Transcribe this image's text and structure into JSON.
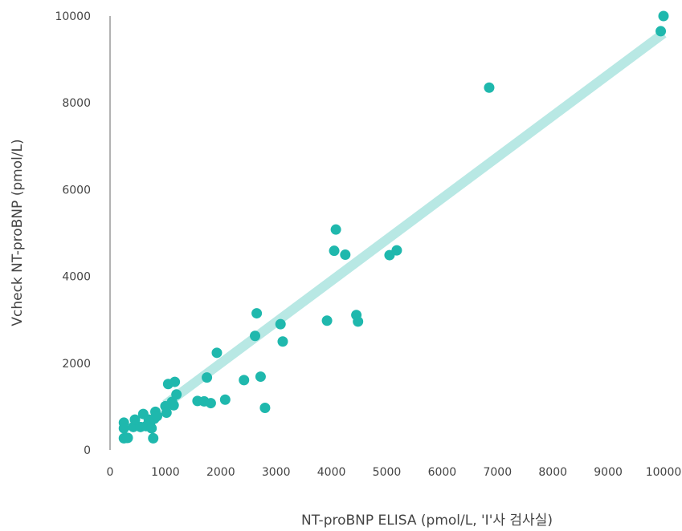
{
  "chart_data": {
    "type": "scatter",
    "title": "",
    "xlabel": "NT-proBNP ELISA (pmol/L, 'I'사 검사실)",
    "ylabel": "Vcheck NT-proBNP (pmol/L)",
    "xlim": [
      0,
      10000
    ],
    "ylim": [
      0,
      10000
    ],
    "x_ticks": [
      "0",
      "1000",
      "2000",
      "3000",
      "4000",
      "5000",
      "6000",
      "7000",
      "8000",
      "9000",
      "10000"
    ],
    "y_ticks": [
      "0",
      "2000",
      "4000",
      "6000",
      "8000",
      "10000"
    ],
    "grid": false,
    "legend": "none",
    "colors": {
      "points": "#1fb8ad",
      "trendline": "#b8e8e4",
      "axis": "#666666",
      "text": "#444444"
    },
    "trendline": {
      "x": [
        1000,
        10000
      ],
      "y": [
        1050,
        9600
      ]
    },
    "points": [
      [
        250,
        630
      ],
      [
        250,
        500
      ],
      [
        250,
        270
      ],
      [
        300,
        280
      ],
      [
        320,
        280
      ],
      [
        420,
        530
      ],
      [
        450,
        700
      ],
      [
        550,
        530
      ],
      [
        600,
        830
      ],
      [
        650,
        550
      ],
      [
        700,
        700
      ],
      [
        720,
        600
      ],
      [
        750,
        500
      ],
      [
        780,
        270
      ],
      [
        800,
        720
      ],
      [
        820,
        880
      ],
      [
        850,
        780
      ],
      [
        1000,
        1010
      ],
      [
        1020,
        860
      ],
      [
        1050,
        1520
      ],
      [
        1120,
        1110
      ],
      [
        1150,
        1030
      ],
      [
        1170,
        1570
      ],
      [
        1200,
        1280
      ],
      [
        1580,
        1130
      ],
      [
        1700,
        1120
      ],
      [
        1750,
        1670
      ],
      [
        1820,
        1080
      ],
      [
        1930,
        2240
      ],
      [
        2080,
        1160
      ],
      [
        2420,
        1610
      ],
      [
        2620,
        2630
      ],
      [
        2650,
        3150
      ],
      [
        2720,
        1690
      ],
      [
        2800,
        970
      ],
      [
        3080,
        2900
      ],
      [
        3120,
        2500
      ],
      [
        3920,
        2980
      ],
      [
        4050,
        4590
      ],
      [
        4080,
        5080
      ],
      [
        4250,
        4500
      ],
      [
        4450,
        3110
      ],
      [
        4480,
        2960
      ],
      [
        5050,
        4490
      ],
      [
        5180,
        4600
      ],
      [
        6850,
        8350
      ],
      [
        9950,
        9650
      ],
      [
        10000,
        10000
      ]
    ]
  }
}
